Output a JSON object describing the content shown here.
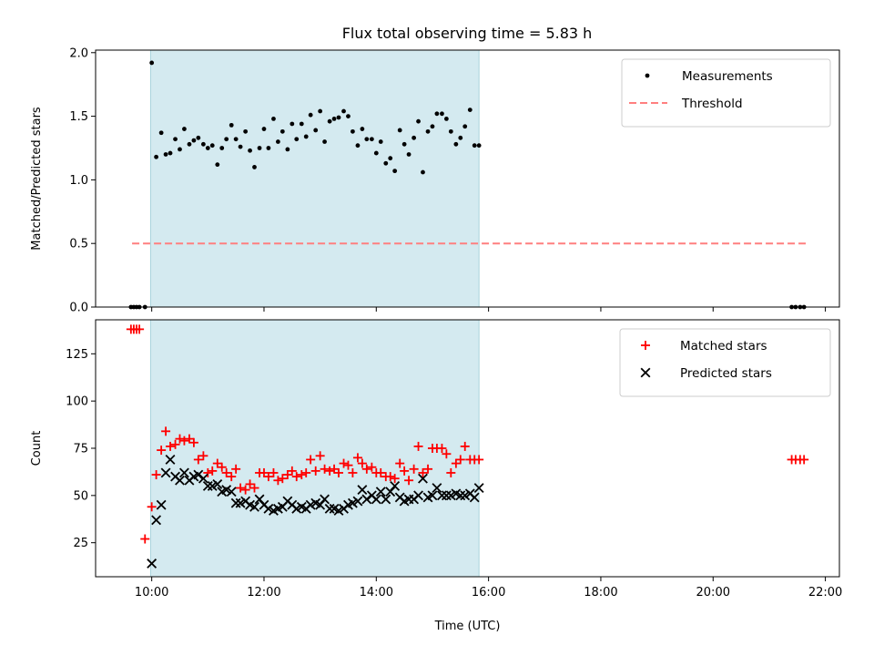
{
  "chart_data": [
    {
      "type": "scatter",
      "panel": "top",
      "title": "Flux total observing time = 5.83 h",
      "ylabel": "Matched/Predicted stars",
      "xlabel": "",
      "xlim": [
        9.0,
        22.25
      ],
      "ylim": [
        0,
        2.02
      ],
      "yticks": [
        0.0,
        0.5,
        1.0,
        1.5,
        2.0
      ],
      "ytick_labels": [
        "0.0",
        "0.5",
        "1.0",
        "1.5",
        "2.0"
      ],
      "xticks": [
        10,
        12,
        14,
        16,
        18,
        20,
        22
      ],
      "show_xtick_labels": false,
      "grid": false,
      "legend_position": "top-right",
      "shaded_span": [
        9.98,
        15.83
      ],
      "shade_color": "#d4eaf0",
      "threshold": {
        "name": "Threshold",
        "y": 0.5,
        "x_range": [
          9.65,
          21.65
        ],
        "color": "#ff7f7f",
        "style": "dashed"
      },
      "series": [
        {
          "name": "Measurements",
          "marker": "dot",
          "color": "#000000",
          "x": [
            9.63,
            9.68,
            9.73,
            9.78,
            9.88,
            10.0,
            10.08,
            10.17,
            10.25,
            10.33,
            10.42,
            10.5,
            10.58,
            10.67,
            10.75,
            10.83,
            10.92,
            11.0,
            11.08,
            11.17,
            11.25,
            11.33,
            11.42,
            11.5,
            11.58,
            11.67,
            11.75,
            11.83,
            11.92,
            12.0,
            12.08,
            12.17,
            12.25,
            12.33,
            12.42,
            12.5,
            12.58,
            12.67,
            12.75,
            12.83,
            12.92,
            13.0,
            13.08,
            13.17,
            13.25,
            13.33,
            13.42,
            13.5,
            13.58,
            13.67,
            13.75,
            13.83,
            13.92,
            14.0,
            14.08,
            14.17,
            14.25,
            14.33,
            14.42,
            14.5,
            14.58,
            14.67,
            14.75,
            14.83,
            14.92,
            15.0,
            15.08,
            15.17,
            15.25,
            15.33,
            15.42,
            15.5,
            15.58,
            15.67,
            15.75,
            15.83,
            21.4,
            21.47,
            21.55,
            21.62
          ],
          "y": [
            0,
            0,
            0,
            0,
            0,
            1.92,
            1.18,
            1.37,
            1.2,
            1.21,
            1.32,
            1.24,
            1.4,
            1.28,
            1.31,
            1.33,
            1.28,
            1.25,
            1.27,
            1.12,
            1.25,
            1.32,
            1.43,
            1.32,
            1.26,
            1.38,
            1.23,
            1.1,
            1.25,
            1.4,
            1.25,
            1.48,
            1.3,
            1.38,
            1.24,
            1.44,
            1.32,
            1.44,
            1.34,
            1.51,
            1.39,
            1.54,
            1.3,
            1.46,
            1.48,
            1.49,
            1.54,
            1.5,
            1.38,
            1.27,
            1.4,
            1.32,
            1.32,
            1.21,
            1.3,
            1.13,
            1.17,
            1.07,
            1.39,
            1.28,
            1.2,
            1.33,
            1.46,
            1.06,
            1.38,
            1.42,
            1.52,
            1.52,
            1.48,
            1.38,
            1.28,
            1.33,
            1.42,
            1.55,
            1.27,
            1.27,
            0,
            0,
            0,
            0
          ]
        }
      ]
    },
    {
      "type": "scatter",
      "panel": "bottom",
      "ylabel": "Count",
      "xlabel": "Time (UTC)",
      "xlim": [
        9.0,
        22.25
      ],
      "ylim": [
        7,
        143
      ],
      "yticks": [
        25,
        50,
        75,
        100,
        125
      ],
      "ytick_labels": [
        "25",
        "50",
        "75",
        "100",
        "125"
      ],
      "xticks": [
        10,
        12,
        14,
        16,
        18,
        20,
        22
      ],
      "xtick_labels": [
        "10:00",
        "12:00",
        "14:00",
        "16:00",
        "18:00",
        "20:00",
        "22:00"
      ],
      "grid": false,
      "legend_position": "top-right",
      "shaded_span": [
        9.98,
        15.83
      ],
      "shade_color": "#d4eaf0",
      "series": [
        {
          "name": "Matched stars",
          "marker": "plus",
          "color": "#ff0000",
          "x": [
            9.63,
            9.68,
            9.73,
            9.78,
            9.88,
            10.0,
            10.08,
            10.17,
            10.25,
            10.33,
            10.42,
            10.5,
            10.58,
            10.67,
            10.75,
            10.83,
            10.92,
            11.0,
            11.08,
            11.17,
            11.25,
            11.33,
            11.42,
            11.5,
            11.58,
            11.67,
            11.75,
            11.83,
            11.92,
            12.0,
            12.08,
            12.17,
            12.25,
            12.33,
            12.42,
            12.5,
            12.58,
            12.67,
            12.75,
            12.83,
            12.92,
            13.0,
            13.08,
            13.17,
            13.25,
            13.33,
            13.42,
            13.5,
            13.58,
            13.67,
            13.75,
            13.83,
            13.92,
            14.0,
            14.08,
            14.17,
            14.25,
            14.33,
            14.42,
            14.5,
            14.58,
            14.67,
            14.75,
            14.83,
            14.92,
            15.0,
            15.08,
            15.17,
            15.25,
            15.33,
            15.42,
            15.5,
            15.58,
            15.67,
            15.75,
            15.83,
            21.4,
            21.47,
            21.55,
            21.62
          ],
          "y": [
            138,
            138,
            138,
            138,
            27,
            44,
            61,
            74,
            84,
            76,
            77,
            80,
            79,
            80,
            78,
            69,
            71,
            62,
            63,
            67,
            65,
            62,
            60,
            64,
            54,
            53,
            56,
            54,
            62,
            62,
            60,
            62,
            58,
            59,
            61,
            63,
            60,
            61,
            62,
            69,
            63,
            71,
            64,
            63,
            64,
            62,
            67,
            66,
            62,
            70,
            67,
            64,
            65,
            62,
            62,
            60,
            60,
            59,
            67,
            63,
            58,
            64,
            76,
            62,
            64,
            75,
            75,
            75,
            72,
            62,
            67,
            69,
            76,
            69,
            69,
            69,
            69,
            69,
            69,
            69
          ]
        },
        {
          "name": "Predicted stars",
          "marker": "x",
          "color": "#000000",
          "x": [
            10.0,
            10.08,
            10.17,
            10.25,
            10.33,
            10.42,
            10.5,
            10.58,
            10.67,
            10.75,
            10.83,
            10.92,
            11.0,
            11.08,
            11.17,
            11.25,
            11.33,
            11.42,
            11.5,
            11.58,
            11.67,
            11.75,
            11.83,
            11.92,
            12.0,
            12.08,
            12.17,
            12.25,
            12.33,
            12.42,
            12.5,
            12.58,
            12.67,
            12.75,
            12.83,
            12.92,
            13.0,
            13.08,
            13.17,
            13.25,
            13.33,
            13.42,
            13.5,
            13.58,
            13.67,
            13.75,
            13.83,
            13.92,
            14.0,
            14.08,
            14.17,
            14.25,
            14.33,
            14.42,
            14.5,
            14.58,
            14.67,
            14.75,
            14.83,
            14.92,
            15.0,
            15.08,
            15.17,
            15.25,
            15.33,
            15.42,
            15.5,
            15.58,
            15.67,
            15.75,
            15.83
          ],
          "y": [
            14,
            37,
            45,
            62,
            69,
            60,
            58,
            62,
            58,
            60,
            61,
            59,
            55,
            55,
            56,
            52,
            53,
            52,
            46,
            46,
            47,
            45,
            44,
            48,
            45,
            43,
            42,
            43,
            44,
            47,
            45,
            43,
            44,
            43,
            45,
            46,
            45,
            48,
            43,
            43,
            42,
            43,
            45,
            46,
            47,
            53,
            48,
            50,
            48,
            52,
            48,
            52,
            55,
            49,
            47,
            48,
            48,
            50,
            59,
            49,
            50,
            54,
            50,
            50,
            50,
            51,
            50,
            50,
            51,
            49,
            54
          ]
        }
      ]
    }
  ]
}
